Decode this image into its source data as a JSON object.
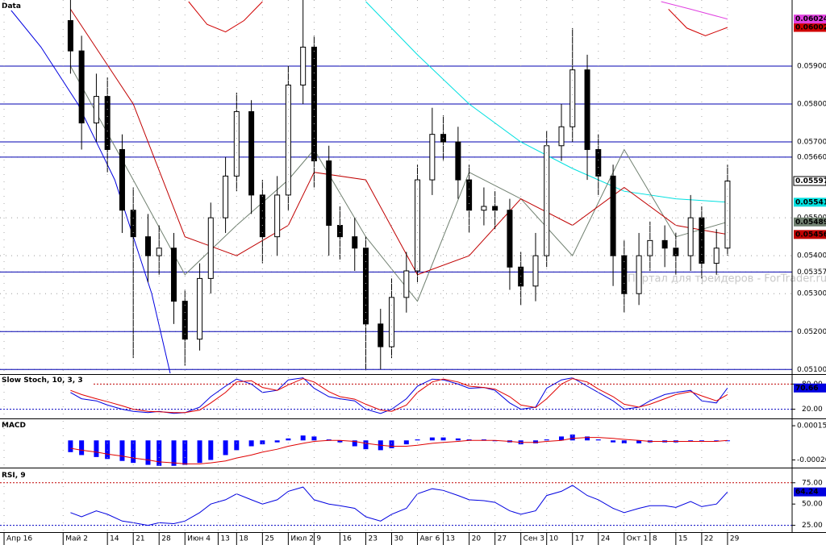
{
  "chart_data": [
    {
      "type": "candlestick",
      "title": "Data",
      "watermark": "Портал для трейдеров - ForTrader.ru",
      "x": [
        18,
        21,
        25,
        28,
        32,
        35,
        39,
        42,
        46,
        49,
        53,
        56,
        60,
        63,
        67,
        70,
        74,
        77,
        81,
        84,
        88,
        91,
        95,
        98,
        102,
        105,
        109,
        112,
        116,
        119,
        123,
        126,
        130,
        133,
        137,
        140,
        144,
        147,
        151,
        154,
        158,
        161,
        165,
        168,
        172,
        175,
        179,
        182,
        186,
        189,
        193,
        196
      ],
      "open": [
        0.0602,
        0.0594,
        0.0575,
        0.0582,
        0.0568,
        0.0552,
        0.0545,
        0.054,
        0.0542,
        0.0528,
        0.0518,
        0.0534,
        0.055,
        0.0561,
        0.0578,
        0.0556,
        0.0545,
        0.0556,
        0.0585,
        0.0595,
        0.0565,
        0.0548,
        0.0545,
        0.0542,
        0.0522,
        0.0516,
        0.0529,
        0.0536,
        0.056,
        0.0572,
        0.057,
        0.056,
        0.0552,
        0.0553,
        0.0552,
        0.0537,
        0.0532,
        0.054,
        0.0569,
        0.0574,
        0.0589,
        0.0568,
        0.0561,
        0.054,
        0.053,
        0.054,
        0.0544,
        0.0542,
        0.054,
        0.055,
        0.0538,
        0.0542
      ],
      "high": [
        0.0608,
        0.0598,
        0.0588,
        0.0587,
        0.0572,
        0.0558,
        0.0551,
        0.0548,
        0.0546,
        0.0531,
        0.0538,
        0.0554,
        0.0566,
        0.0583,
        0.0581,
        0.056,
        0.0561,
        0.059,
        0.0609,
        0.0598,
        0.0569,
        0.0553,
        0.055,
        0.0545,
        0.0526,
        0.0534,
        0.0541,
        0.0564,
        0.0579,
        0.0577,
        0.0574,
        0.0564,
        0.0558,
        0.0557,
        0.0555,
        0.0541,
        0.0546,
        0.0573,
        0.058,
        0.06,
        0.0593,
        0.0572,
        0.0564,
        0.0544,
        0.0546,
        0.0549,
        0.0548,
        0.0546,
        0.0556,
        0.0553,
        0.0547,
        0.0564
      ],
      "low": [
        0.0588,
        0.0568,
        0.057,
        0.0562,
        0.0546,
        0.0513,
        0.0533,
        0.0535,
        0.0522,
        0.0511,
        0.0515,
        0.053,
        0.0546,
        0.0557,
        0.0551,
        0.0538,
        0.054,
        0.0552,
        0.058,
        0.0558,
        0.054,
        0.0539,
        0.0536,
        0.051,
        0.051,
        0.0513,
        0.0525,
        0.0533,
        0.0556,
        0.0565,
        0.0555,
        0.0546,
        0.0548,
        0.0547,
        0.0531,
        0.0527,
        0.0528,
        0.0537,
        0.0565,
        0.057,
        0.056,
        0.0556,
        0.0532,
        0.0525,
        0.0527,
        0.0536,
        0.0537,
        0.0535,
        0.0536,
        0.0534,
        0.0535,
        0.054
      ],
      "close": [
        0.0594,
        0.0575,
        0.0582,
        0.0568,
        0.0552,
        0.0545,
        0.054,
        0.0542,
        0.0528,
        0.0518,
        0.0534,
        0.055,
        0.0561,
        0.0578,
        0.0556,
        0.0545,
        0.0556,
        0.0585,
        0.0595,
        0.0565,
        0.0548,
        0.0545,
        0.0542,
        0.0522,
        0.0516,
        0.0529,
        0.0536,
        0.056,
        0.0572,
        0.057,
        0.056,
        0.0552,
        0.0553,
        0.0552,
        0.0537,
        0.0532,
        0.054,
        0.0569,
        0.0574,
        0.0589,
        0.0568,
        0.0561,
        0.054,
        0.053,
        0.054,
        0.0544,
        0.0542,
        0.054,
        0.055,
        0.0538,
        0.0542,
        0.05597
      ],
      "xlim": [
        -1.1,
        213.5
      ],
      "ylim": [
        0.0509,
        0.0607
      ],
      "yticks": [
        {
          "value": 0.059,
          "label": "0.05900"
        },
        {
          "value": 0.058,
          "label": "0.05800"
        },
        {
          "value": 0.057,
          "label": "0.05700"
        },
        {
          "value": 0.0566,
          "label": "0.05660"
        },
        {
          "value": 0.055,
          "label": "0.05500"
        },
        {
          "value": 0.054,
          "label": "0.05400"
        },
        {
          "value": 0.05357,
          "label": "0.05357"
        },
        {
          "value": 0.053,
          "label": "0.05300"
        },
        {
          "value": 0.052,
          "label": "0.05200"
        },
        {
          "value": 0.051,
          "label": "0.05100"
        }
      ],
      "level_lines": [
        0.059,
        0.058,
        0.057,
        0.0566,
        0.05357,
        0.052,
        0.051
      ],
      "level_color": "#0000b0",
      "grid": true,
      "lines": [
        {
          "color": "#00e0e0",
          "x": [
            98,
            112,
            126,
            140,
            154,
            168,
            182,
            196
          ],
          "values": [
            0.0607,
            0.0593,
            0.058,
            0.057,
            0.0563,
            0.0557,
            0.0555,
            0.05541
          ],
          "tag": true
        },
        {
          "color": "#708070",
          "x": [
            18,
            35,
            49,
            63,
            77,
            84,
            98,
            112,
            126,
            140,
            154,
            168,
            182,
            196
          ],
          "values": [
            0.059,
            0.056,
            0.0535,
            0.0548,
            0.056,
            0.0568,
            0.0545,
            0.0528,
            0.0562,
            0.0555,
            0.054,
            0.0568,
            0.0545,
            0.05489
          ],
          "tag": true
        },
        {
          "color": "#c00000",
          "x": [
            18,
            35,
            49,
            63,
            77,
            84,
            98,
            112,
            126,
            140,
            154,
            168,
            182,
            196
          ],
          "values": [
            0.0605,
            0.058,
            0.0545,
            0.054,
            0.0548,
            0.0562,
            0.056,
            0.0535,
            0.054,
            0.0555,
            0.0548,
            0.0558,
            0.0548,
            0.05456
          ],
          "tag": true
        },
        {
          "color": "#d00000",
          "x": [
            50,
            55,
            60,
            65,
            70,
            null,
            180,
            185,
            190,
            196
          ],
          "values": [
            0.0607,
            0.0601,
            0.0599,
            0.0602,
            0.0607,
            null,
            0.0605,
            0.06,
            0.0598,
            0.06002
          ],
          "tag": true
        },
        {
          "color": "#e040e0",
          "x": [
            178,
            186,
            196
          ],
          "values": [
            0.0607,
            0.0605,
            0.06024
          ],
          "tag": true
        },
        {
          "color": "#0000e0",
          "x": [
            0,
            10,
            20,
            30,
            40,
            45
          ],
          "values": [
            0.0607,
            0.0595,
            0.058,
            0.056,
            0.053,
            0.0509
          ],
          "tag": false
        }
      ]
    },
    {
      "type": "line",
      "title": "Slow Stoch, 10, 3, 3",
      "ylim": [
        0,
        100
      ],
      "yticks": [
        {
          "value": 80,
          "label": "80.00"
        },
        {
          "value": 20,
          "label": "20.00"
        }
      ],
      "levels": [
        80,
        20
      ],
      "series": [
        {
          "color": "#0000e0",
          "values": [
            60,
            45,
            40,
            30,
            20,
            15,
            12,
            15,
            10,
            12,
            25,
            50,
            75,
            92,
            80,
            60,
            65,
            90,
            95,
            70,
            50,
            45,
            40,
            20,
            10,
            20,
            45,
            75,
            92,
            90,
            80,
            70,
            72,
            65,
            35,
            20,
            25,
            70,
            90,
            95,
            75,
            60,
            40,
            20,
            25,
            40,
            55,
            60,
            65,
            40,
            35,
            70.66
          ],
          "tag": true
        },
        {
          "color": "#e00000",
          "values": [
            65,
            55,
            45,
            38,
            28,
            20,
            15,
            14,
            12,
            12,
            18,
            35,
            60,
            85,
            88,
            72,
            65,
            78,
            93,
            85,
            62,
            50,
            44,
            32,
            18,
            15,
            30,
            60,
            85,
            92,
            85,
            75,
            72,
            68,
            50,
            30,
            24,
            45,
            80,
            93,
            85,
            68,
            50,
            32,
            25,
            32,
            45,
            55,
            62,
            52,
            40,
            55
          ],
          "tag": false
        }
      ]
    },
    {
      "type": "macd",
      "title": "MACD",
      "ylim": [
        -0.00027,
        0.0002
      ],
      "yticks": [
        {
          "value": 0.00015,
          "label": "0.00015"
        },
        {
          "value": -0.0002,
          "label": "-0.00020"
        }
      ],
      "series": [
        {
          "style": "bar",
          "color": "#0000ff",
          "values": [
            -0.00012,
            -0.00015,
            -0.00017,
            -0.00019,
            -0.00021,
            -0.00023,
            -0.00025,
            -0.00026,
            -0.00026,
            -0.00025,
            -0.00023,
            -0.0002,
            -0.00015,
            -0.0001,
            -6e-05,
            -4e-05,
            -2e-05,
            2e-05,
            5e-05,
            4e-05,
            1e-05,
            -2e-05,
            -6e-05,
            -9e-05,
            -0.0001,
            -8e-05,
            -4e-05,
            1e-05,
            3e-05,
            3e-05,
            2e-05,
            1e-05,
            1e-05,
            0,
            -2e-05,
            -4e-05,
            -3e-05,
            1e-05,
            4e-05,
            6e-05,
            4e-05,
            1e-05,
            -2e-05,
            -3e-05,
            -3e-05,
            -2e-05,
            -2e-05,
            -2e-05,
            -1e-05,
            -1e-05,
            -1e-05,
            0
          ]
        },
        {
          "style": "line",
          "color": "#e00000",
          "values": [
            -8e-05,
            -0.0001,
            -0.00012,
            -0.00014,
            -0.00016,
            -0.00018,
            -0.0002,
            -0.00022,
            -0.00023,
            -0.00024,
            -0.00024,
            -0.00023,
            -0.00021,
            -0.00018,
            -0.00015,
            -0.00012,
            -9e-05,
            -6e-05,
            -3e-05,
            -1e-05,
            0,
            0,
            -1e-05,
            -3e-05,
            -5e-05,
            -6e-05,
            -6e-05,
            -5e-05,
            -3e-05,
            -2e-05,
            -1e-05,
            0,
            0,
            0,
            -1e-05,
            -2e-05,
            -2e-05,
            -1e-05,
            0,
            2e-05,
            3e-05,
            3e-05,
            2e-05,
            1e-05,
            0,
            -1e-05,
            -1e-05,
            -1e-05,
            -1e-05,
            -1e-05,
            -1e-05,
            0
          ]
        }
      ]
    },
    {
      "type": "line",
      "title": "RSI, 9",
      "ylim": [
        18,
        89
      ],
      "yticks": [
        {
          "value": 75,
          "label": "75.00"
        },
        {
          "value": 50,
          "label": "50.00"
        },
        {
          "value": 25,
          "label": "25.00"
        }
      ],
      "levels": [
        75,
        25
      ],
      "series": [
        {
          "color": "#0000e0",
          "values": [
            40,
            35,
            42,
            38,
            30,
            28,
            25,
            28,
            27,
            30,
            40,
            50,
            55,
            62,
            55,
            50,
            55,
            65,
            70,
            55,
            50,
            48,
            45,
            35,
            30,
            38,
            45,
            62,
            68,
            66,
            60,
            55,
            54,
            52,
            42,
            38,
            42,
            60,
            65,
            72,
            60,
            55,
            45,
            40,
            45,
            48,
            48,
            46,
            53,
            47,
            50,
            64.24
          ],
          "tag": true
        }
      ],
      "xticks": [
        {
          "value": 0,
          "label": "Апр 16"
        },
        {
          "value": 16,
          "label": "Май 2"
        },
        {
          "value": 28,
          "label": "14"
        },
        {
          "value": 35,
          "label": "21"
        },
        {
          "value": 42,
          "label": "28"
        },
        {
          "value": 49,
          "label": "Июн 4"
        },
        {
          "value": 58,
          "label": "13"
        },
        {
          "value": 63,
          "label": "18"
        },
        {
          "value": 70,
          "label": "25"
        },
        {
          "value": 77,
          "label": "Июл 2"
        },
        {
          "value": 84,
          "label": "9"
        },
        {
          "value": 91,
          "label": "16"
        },
        {
          "value": 98,
          "label": "23"
        },
        {
          "value": 105,
          "label": "30"
        },
        {
          "value": 112,
          "label": "Авг 6"
        },
        {
          "value": 119,
          "label": "13"
        },
        {
          "value": 126,
          "label": "20"
        },
        {
          "value": 133,
          "label": "27"
        },
        {
          "value": 140,
          "label": "Сен 3"
        },
        {
          "value": 147,
          "label": "10"
        },
        {
          "value": 154,
          "label": "17"
        },
        {
          "value": 161,
          "label": "24"
        },
        {
          "value": 168,
          "label": "Окт 1"
        },
        {
          "value": 175,
          "label": "8"
        },
        {
          "value": 182,
          "label": "15"
        },
        {
          "value": 189,
          "label": "22"
        },
        {
          "value": 196,
          "label": "29"
        }
      ]
    }
  ]
}
